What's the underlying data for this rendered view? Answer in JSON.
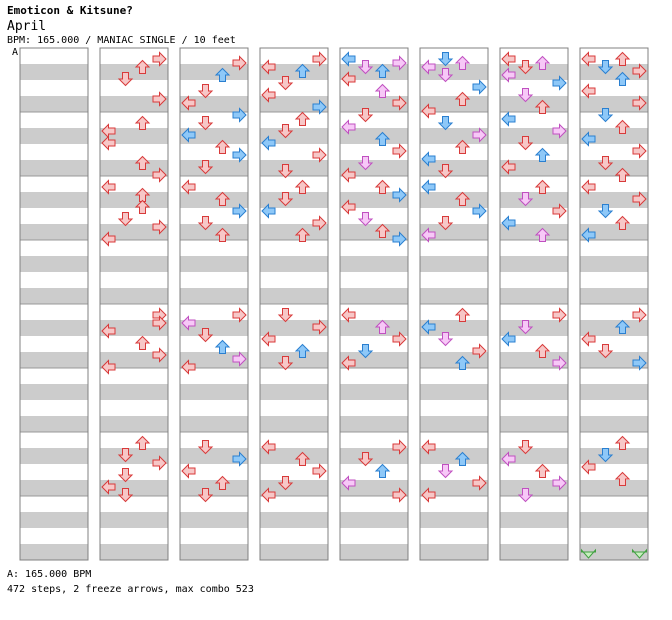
{
  "song": {
    "title": "Emoticon & Kitsune?",
    "artist": "April",
    "info": "BPM: 165.000 / MANIAC SINGLE / 10 feet",
    "marker": "A"
  },
  "footer": {
    "bpm_line": "A: 165.000 BPM",
    "stats_line": "472 steps, 2 freeze arrows, max combo 523"
  },
  "colors": {
    "red_fill": "#f7c7c7",
    "red_stroke": "#d83a3a",
    "blue_fill": "#8ec8f8",
    "blue_stroke": "#2a7fd0",
    "pink_fill": "#f7c8f7",
    "pink_stroke": "#c050c0",
    "freeze_fill": "#c8f0c0",
    "freeze_stroke": "#40a040",
    "stripe": "#cccccc",
    "border": "#808080"
  },
  "icons": [
    "left-arrow-icon",
    "down-arrow-icon",
    "up-arrow-icon",
    "right-arrow-icon",
    "freeze-arrow-icon"
  ],
  "columns": [
    [],
    [
      [
        0,
        1,
        3,
        "r"
      ],
      [
        0,
        3,
        2,
        "r"
      ],
      [
        0,
        6,
        1,
        "r"
      ],
      [
        0,
        11,
        3,
        "r"
      ],
      [
        0,
        17,
        2,
        "r"
      ],
      [
        0,
        19,
        0,
        "r"
      ],
      [
        0,
        22,
        0,
        "r"
      ],
      [
        0,
        27,
        2,
        "r"
      ],
      [
        0,
        30,
        3,
        "r"
      ],
      [
        1,
        1,
        0,
        "r"
      ],
      [
        1,
        3,
        2,
        "r"
      ],
      [
        1,
        6,
        2,
        "r"
      ],
      [
        1,
        9,
        1,
        "r"
      ],
      [
        1,
        11,
        3,
        "r"
      ],
      [
        1,
        14,
        0,
        "r"
      ],
      [
        2,
        1,
        3,
        "r"
      ],
      [
        2,
        3,
        3,
        "r"
      ],
      [
        2,
        5,
        0,
        "r"
      ],
      [
        2,
        8,
        2,
        "r"
      ],
      [
        2,
        11,
        3,
        "r"
      ],
      [
        2,
        14,
        0,
        "r"
      ],
      [
        3,
        1,
        2,
        "r"
      ],
      [
        3,
        4,
        1,
        "r"
      ],
      [
        3,
        6,
        3,
        "r"
      ],
      [
        3,
        9,
        1,
        "r"
      ],
      [
        3,
        12,
        0,
        "r"
      ],
      [
        3,
        14,
        1,
        "r"
      ]
    ],
    [
      [
        0,
        2,
        3,
        "r"
      ],
      [
        0,
        5,
        2,
        "b"
      ],
      [
        0,
        9,
        1,
        "r"
      ],
      [
        0,
        12,
        0,
        "r"
      ],
      [
        0,
        15,
        3,
        "b"
      ],
      [
        0,
        17,
        1,
        "r"
      ],
      [
        0,
        20,
        0,
        "b"
      ],
      [
        0,
        23,
        2,
        "r"
      ],
      [
        0,
        25,
        3,
        "b"
      ],
      [
        0,
        28,
        1,
        "r"
      ],
      [
        1,
        1,
        0,
        "r"
      ],
      [
        1,
        4,
        2,
        "r"
      ],
      [
        1,
        7,
        3,
        "b"
      ],
      [
        1,
        10,
        1,
        "r"
      ],
      [
        1,
        13,
        2,
        "r"
      ],
      [
        2,
        1,
        3,
        "r"
      ],
      [
        2,
        3,
        0,
        "p"
      ],
      [
        2,
        6,
        1,
        "r"
      ],
      [
        2,
        9,
        2,
        "b"
      ],
      [
        2,
        12,
        3,
        "p"
      ],
      [
        2,
        14,
        0,
        "r"
      ],
      [
        3,
        2,
        1,
        "r"
      ],
      [
        3,
        5,
        3,
        "b"
      ],
      [
        3,
        8,
        0,
        "r"
      ],
      [
        3,
        11,
        2,
        "r"
      ],
      [
        3,
        14,
        1,
        "r"
      ]
    ],
    [
      [
        0,
        1,
        3,
        "r"
      ],
      [
        0,
        3,
        0,
        "r"
      ],
      [
        0,
        4,
        2,
        "b"
      ],
      [
        0,
        7,
        1,
        "r"
      ],
      [
        0,
        10,
        0,
        "r"
      ],
      [
        0,
        13,
        3,
        "b"
      ],
      [
        0,
        16,
        2,
        "r"
      ],
      [
        0,
        19,
        1,
        "r"
      ],
      [
        0,
        22,
        0,
        "b"
      ],
      [
        0,
        25,
        3,
        "r"
      ],
      [
        0,
        29,
        1,
        "r"
      ],
      [
        1,
        1,
        2,
        "r"
      ],
      [
        1,
        4,
        1,
        "r"
      ],
      [
        1,
        7,
        0,
        "b"
      ],
      [
        1,
        10,
        3,
        "r"
      ],
      [
        1,
        13,
        2,
        "r"
      ],
      [
        2,
        1,
        1,
        "r"
      ],
      [
        2,
        4,
        3,
        "r"
      ],
      [
        2,
        7,
        0,
        "r"
      ],
      [
        2,
        10,
        2,
        "b"
      ],
      [
        2,
        13,
        1,
        "r"
      ],
      [
        3,
        2,
        0,
        "r"
      ],
      [
        3,
        5,
        2,
        "r"
      ],
      [
        3,
        8,
        3,
        "r"
      ],
      [
        3,
        11,
        1,
        "r"
      ],
      [
        3,
        14,
        0,
        "r"
      ]
    ],
    [
      [
        0,
        1,
        0,
        "b"
      ],
      [
        0,
        2,
        3,
        "p"
      ],
      [
        0,
        3,
        1,
        "p"
      ],
      [
        0,
        4,
        2,
        "b"
      ],
      [
        0,
        6,
        0,
        "r"
      ],
      [
        0,
        9,
        2,
        "p"
      ],
      [
        0,
        12,
        3,
        "r"
      ],
      [
        0,
        15,
        1,
        "r"
      ],
      [
        0,
        18,
        0,
        "p"
      ],
      [
        0,
        21,
        2,
        "b"
      ],
      [
        0,
        24,
        3,
        "r"
      ],
      [
        0,
        27,
        1,
        "p"
      ],
      [
        0,
        30,
        0,
        "r"
      ],
      [
        1,
        1,
        2,
        "r"
      ],
      [
        1,
        3,
        3,
        "b"
      ],
      [
        1,
        6,
        0,
        "r"
      ],
      [
        1,
        9,
        1,
        "p"
      ],
      [
        1,
        12,
        2,
        "r"
      ],
      [
        1,
        14,
        3,
        "b"
      ],
      [
        2,
        1,
        0,
        "r"
      ],
      [
        2,
        4,
        2,
        "p"
      ],
      [
        2,
        7,
        3,
        "r"
      ],
      [
        2,
        10,
        1,
        "b"
      ],
      [
        2,
        13,
        0,
        "r"
      ],
      [
        3,
        2,
        3,
        "r"
      ],
      [
        3,
        5,
        1,
        "r"
      ],
      [
        3,
        8,
        2,
        "b"
      ],
      [
        3,
        11,
        0,
        "p"
      ],
      [
        3,
        14,
        3,
        "r"
      ]
    ],
    [
      [
        0,
        1,
        1,
        "b"
      ],
      [
        0,
        2,
        2,
        "p"
      ],
      [
        0,
        3,
        0,
        "p"
      ],
      [
        0,
        5,
        1,
        "p"
      ],
      [
        0,
        8,
        3,
        "b"
      ],
      [
        0,
        11,
        2,
        "r"
      ],
      [
        0,
        14,
        0,
        "r"
      ],
      [
        0,
        17,
        1,
        "b"
      ],
      [
        0,
        20,
        3,
        "p"
      ],
      [
        0,
        23,
        2,
        "r"
      ],
      [
        0,
        26,
        0,
        "b"
      ],
      [
        0,
        29,
        1,
        "r"
      ],
      [
        1,
        1,
        0,
        "b"
      ],
      [
        1,
        4,
        2,
        "r"
      ],
      [
        1,
        7,
        3,
        "b"
      ],
      [
        1,
        10,
        1,
        "r"
      ],
      [
        1,
        13,
        0,
        "p"
      ],
      [
        2,
        1,
        2,
        "r"
      ],
      [
        2,
        4,
        0,
        "b"
      ],
      [
        2,
        7,
        1,
        "p"
      ],
      [
        2,
        10,
        3,
        "r"
      ],
      [
        2,
        13,
        2,
        "b"
      ],
      [
        3,
        2,
        0,
        "r"
      ],
      [
        3,
        5,
        2,
        "b"
      ],
      [
        3,
        8,
        1,
        "p"
      ],
      [
        3,
        11,
        3,
        "r"
      ],
      [
        3,
        14,
        0,
        "r"
      ]
    ],
    [
      [
        0,
        1,
        0,
        "r"
      ],
      [
        0,
        2,
        2,
        "p"
      ],
      [
        0,
        3,
        1,
        "r"
      ],
      [
        0,
        5,
        0,
        "p"
      ],
      [
        0,
        7,
        3,
        "b"
      ],
      [
        0,
        10,
        1,
        "p"
      ],
      [
        0,
        13,
        2,
        "r"
      ],
      [
        0,
        16,
        0,
        "b"
      ],
      [
        0,
        19,
        3,
        "p"
      ],
      [
        0,
        22,
        1,
        "r"
      ],
      [
        0,
        25,
        2,
        "b"
      ],
      [
        0,
        28,
        0,
        "r"
      ],
      [
        1,
        1,
        2,
        "r"
      ],
      [
        1,
        4,
        1,
        "p"
      ],
      [
        1,
        7,
        3,
        "r"
      ],
      [
        1,
        10,
        0,
        "b"
      ],
      [
        1,
        13,
        2,
        "p"
      ],
      [
        2,
        1,
        3,
        "r"
      ],
      [
        2,
        4,
        1,
        "p"
      ],
      [
        2,
        7,
        0,
        "b"
      ],
      [
        2,
        10,
        2,
        "r"
      ],
      [
        2,
        13,
        3,
        "p"
      ],
      [
        3,
        2,
        1,
        "r"
      ],
      [
        3,
        5,
        0,
        "p"
      ],
      [
        3,
        8,
        2,
        "r"
      ],
      [
        3,
        11,
        3,
        "p"
      ],
      [
        3,
        14,
        1,
        "p"
      ]
    ],
    [
      [
        0,
        1,
        0,
        "r"
      ],
      [
        0,
        1,
        2,
        "r"
      ],
      [
        0,
        3,
        1,
        "b"
      ],
      [
        0,
        4,
        3,
        "r"
      ],
      [
        0,
        6,
        2,
        "b"
      ],
      [
        0,
        9,
        0,
        "r"
      ],
      [
        0,
        12,
        3,
        "r"
      ],
      [
        0,
        15,
        1,
        "b"
      ],
      [
        0,
        18,
        2,
        "r"
      ],
      [
        0,
        21,
        0,
        "b"
      ],
      [
        0,
        24,
        3,
        "r"
      ],
      [
        0,
        27,
        1,
        "r"
      ],
      [
        0,
        30,
        2,
        "r"
      ],
      [
        1,
        1,
        0,
        "r"
      ],
      [
        1,
        4,
        3,
        "r"
      ],
      [
        1,
        7,
        1,
        "b"
      ],
      [
        1,
        10,
        2,
        "r"
      ],
      [
        1,
        13,
        0,
        "b"
      ],
      [
        2,
        1,
        3,
        "r"
      ],
      [
        2,
        4,
        2,
        "b"
      ],
      [
        2,
        7,
        0,
        "r"
      ],
      [
        2,
        10,
        1,
        "r"
      ],
      [
        2,
        13,
        3,
        "b"
      ],
      [
        3,
        1,
        2,
        "r"
      ],
      [
        3,
        4,
        1,
        "b"
      ],
      [
        3,
        7,
        0,
        "r"
      ],
      [
        3,
        10,
        2,
        "r"
      ]
    ]
  ],
  "freezes": [
    {
      "column": 7,
      "lane": 0,
      "start_beat": 15,
      "end_beat": 15.5
    },
    {
      "column": 7,
      "lane": 3,
      "start_beat": 15,
      "end_beat": 15.5
    }
  ]
}
